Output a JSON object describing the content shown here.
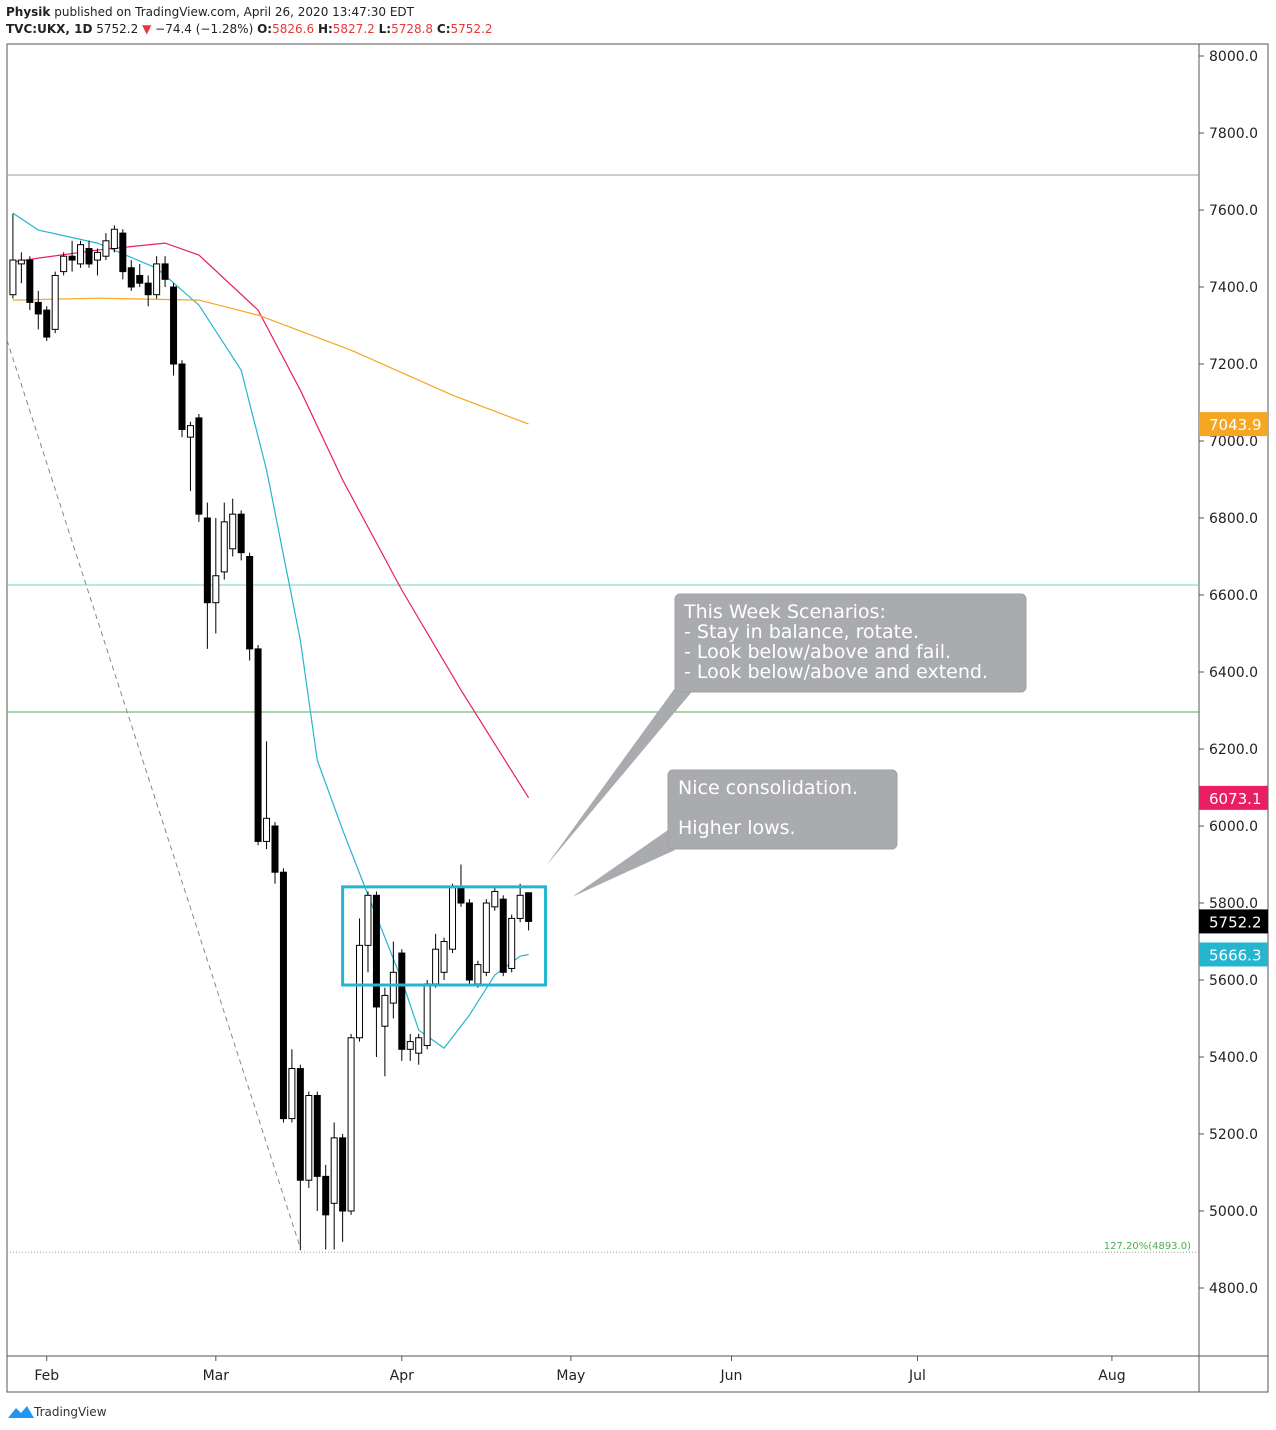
{
  "header": {
    "author": "Physik",
    "published": "published on TradingView.com, April 26, 2020 13:47:30 EDT",
    "symbol": "TVC:UKX, 1D",
    "arrow": "▼",
    "change": "−74.4 (−1.28%)",
    "o": "O:",
    "h": "H:",
    "l": "L:",
    "c": "C:"
  },
  "chart_data": {
    "type": "candlestick",
    "x": [
      -4,
      -3,
      -2,
      -1,
      0,
      1,
      2,
      3,
      4,
      5,
      6,
      7,
      8,
      9,
      10,
      11,
      12,
      13,
      14,
      15,
      16,
      17,
      18,
      19,
      20,
      21,
      22,
      23,
      24,
      25,
      26,
      27,
      28,
      29,
      30,
      31,
      32,
      33,
      34,
      35,
      36,
      37,
      38,
      39,
      40,
      41,
      42,
      43,
      44,
      45,
      46,
      47,
      48,
      49,
      50,
      51,
      52,
      53,
      54,
      55,
      56,
      57
    ],
    "open": [
      7380,
      7460,
      7470,
      7360,
      7340,
      7290,
      7440,
      7480,
      7460,
      7500,
      7470,
      7480,
      7500,
      7540,
      7450,
      7430,
      7410,
      7380,
      7460,
      7400,
      7200,
      7010,
      7060,
      6800,
      6580,
      6660,
      6720,
      6810,
      6700,
      6460,
      5960,
      6000,
      5880,
      5240,
      5370,
      5080,
      5300,
      5090,
      5020,
      5190,
      5000,
      5450,
      5690,
      5820,
      5480,
      5540,
      5670,
      5420,
      5410,
      5430,
      5590,
      5620,
      5680,
      5840,
      5800,
      5590,
      5620,
      5790,
      5810,
      5630,
      5760,
      5826.6
    ],
    "high": [
      7590,
      7490,
      7480,
      7390,
      7350,
      7440,
      7490,
      7520,
      7520,
      7520,
      7500,
      7540,
      7560,
      7550,
      7470,
      7460,
      7430,
      7480,
      7480,
      7410,
      7210,
      7050,
      7070,
      6840,
      6800,
      6840,
      6850,
      6820,
      6710,
      6470,
      6220,
      6010,
      5890,
      5420,
      5380,
      5310,
      5310,
      5120,
      5230,
      5200,
      5460,
      5760,
      5830,
      5830,
      5580,
      5700,
      5680,
      5460,
      5460,
      5600,
      5720,
      5710,
      5850,
      5900,
      5810,
      5650,
      5810,
      5840,
      5820,
      5770,
      5850,
      5827.2
    ],
    "low": [
      7370,
      7410,
      7340,
      7290,
      7260,
      7280,
      7430,
      7440,
      7450,
      7450,
      7430,
      7470,
      7490,
      7420,
      7390,
      7400,
      7350,
      7370,
      7400,
      7170,
      7010,
      6870,
      6790,
      6460,
      6500,
      6640,
      6700,
      6690,
      6430,
      5950,
      5940,
      5850,
      5230,
      5230,
      4898,
      5060,
      5000,
      4900,
      4900,
      4920,
      4990,
      5440,
      5620,
      5400,
      5350,
      5500,
      5390,
      5390,
      5380,
      5420,
      5580,
      5600,
      5670,
      5790,
      5590,
      5580,
      5610,
      5780,
      5610,
      5620,
      5750,
      5728.8
    ],
    "close": [
      7470,
      7470,
      7360,
      7330,
      7270,
      7430,
      7480,
      7470,
      7510,
      7460,
      7490,
      7520,
      7550,
      7440,
      7400,
      7410,
      7380,
      7460,
      7420,
      7200,
      7030,
      7040,
      6810,
      6580,
      6650,
      6790,
      6810,
      6710,
      6460,
      5960,
      6020,
      5880,
      5240,
      5370,
      5080,
      5300,
      5090,
      4990,
      5190,
      5000,
      5450,
      5690,
      5820,
      5530,
      5560,
      5620,
      5420,
      5440,
      5450,
      5590,
      5680,
      5700,
      5840,
      5800,
      5600,
      5640,
      5800,
      5830,
      5620,
      5760,
      5820,
      5752.2
    ],
    "series": [
      {
        "color": "#26b5d0",
        "x": [
          -4,
          -1,
          6,
          13,
          18,
          23,
          26,
          30,
          32,
          35,
          38,
          42,
          44,
          47,
          50,
          53,
          56,
          57
        ],
        "values": [
          7592,
          7548,
          7514,
          7449,
          7353,
          7184,
          6925,
          6483,
          6171,
          5990,
          5821,
          5600,
          5470,
          5423,
          5509,
          5613,
          5662,
          5666.3
        ]
      },
      {
        "color": "#e91e63",
        "x": [
          -4,
          -1,
          6,
          14,
          18,
          25,
          30,
          35,
          42,
          49,
          57
        ],
        "values": [
          7465,
          7475,
          7496,
          7514,
          7483,
          7340,
          7132,
          6899,
          6613,
          6353,
          6073.1
        ]
      },
      {
        "color": "#f5a623",
        "x": [
          -4,
          6,
          18,
          25,
          36,
          48,
          57
        ],
        "values": [
          7366,
          7371,
          7366,
          7327,
          7236,
          7119,
          7043.9
        ]
      }
    ],
    "xlim": [
      -4.7,
      136.3
    ],
    "xticks": [
      {
        "value": 0,
        "label": "Feb"
      },
      {
        "value": 20,
        "label": "Mar"
      },
      {
        "value": 42,
        "label": "Apr"
      },
      {
        "value": 62,
        "label": "May"
      },
      {
        "value": 81,
        "label": "Jun"
      },
      {
        "value": 103,
        "label": "Jul"
      },
      {
        "value": 126,
        "label": "Aug"
      }
    ],
    "ylim": [
      4623.4,
      8031.2
    ],
    "yticks": [
      {
        "value": 4800,
        "label": "4800.0"
      },
      {
        "value": 5000,
        "label": "5000.0"
      },
      {
        "value": 5200,
        "label": "5200.0"
      },
      {
        "value": 5400,
        "label": "5400.0"
      },
      {
        "value": 5600,
        "label": "5600.0"
      },
      {
        "value": 5800,
        "label": "5800.0"
      },
      {
        "value": 6000,
        "label": "6000.0"
      },
      {
        "value": 6200,
        "label": "6200.0"
      },
      {
        "value": 6400,
        "label": "6400.0"
      },
      {
        "value": 6600,
        "label": "6600.0"
      },
      {
        "value": 6800,
        "label": "6800.0"
      },
      {
        "value": 7000,
        "label": "7000.0"
      },
      {
        "value": 7200,
        "label": "7200.0"
      },
      {
        "value": 7400,
        "label": "7400.0"
      },
      {
        "value": 7600,
        "label": "7600.0"
      },
      {
        "value": 7800,
        "label": "7800.0"
      },
      {
        "value": 8000,
        "label": "8000.0"
      }
    ],
    "hlines": [
      {
        "value": 7691,
        "color": "#9e9e9e",
        "style": "solid"
      },
      {
        "value": 6626,
        "color": "#6fd0c8",
        "style": "solid"
      },
      {
        "value": 6296,
        "color": "#4caf50",
        "style": "solid"
      },
      {
        "value": 4893,
        "color": "#9e9e9e",
        "style": "dotted",
        "label": "127.20%(4893.0)"
      }
    ],
    "trendline": {
      "x": [
        -4.7,
        30
      ],
      "y": [
        7262,
        4904
      ],
      "color": "#888888"
    },
    "box": {
      "x": [
        35,
        59
      ],
      "y": [
        5587,
        5842
      ],
      "color": "#26b5d0"
    }
  },
  "annotations": {
    "scenarios": [
      "This Week Scenarios:",
      "- Stay in balance, rotate.",
      "- Look below/above and fail.",
      "- Look below/above and extend."
    ],
    "consolidation": [
      "Nice consolidation.",
      "Higher lows."
    ]
  },
  "footer": "TradingView"
}
